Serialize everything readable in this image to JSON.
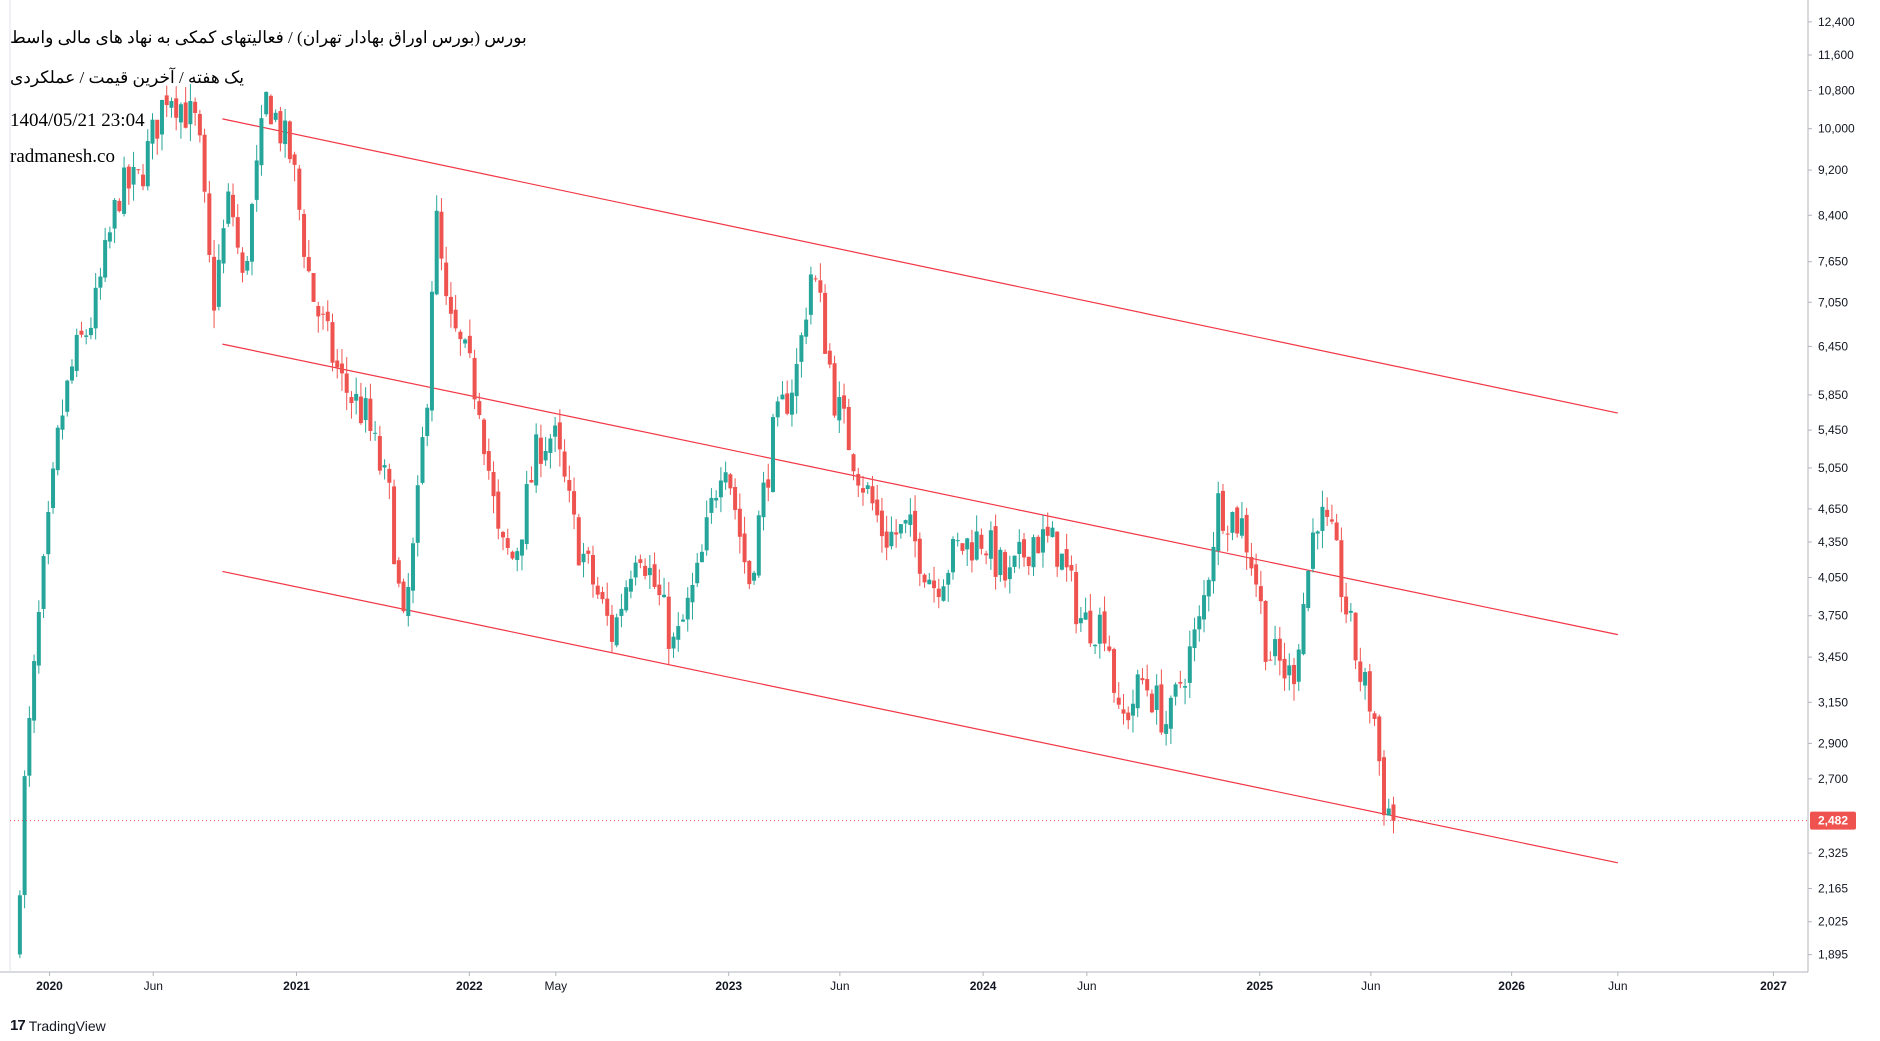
{
  "header": {
    "title": "بورس (بورس اوراق بهادار تهران) / فعالیتهای کمکی به نهاد های مالی واسط",
    "subtitle": "یک هفته / آخرین قیمت / عملکردی",
    "timestamp": "1404/05/21 23:04",
    "website": "radmanesh.co"
  },
  "brand": {
    "logo": "17",
    "name": "TradingView"
  },
  "chart_data": {
    "type": "candlestick",
    "interval": "1W",
    "y_scale": "log",
    "ylim": [
      1830,
      12700
    ],
    "xlim": [
      2019.84,
      2027.12
    ],
    "y_ticks": [
      {
        "v": 12400,
        "label": "12,400"
      },
      {
        "v": 11600,
        "label": "11,600"
      },
      {
        "v": 10800,
        "label": "10,800"
      },
      {
        "v": 10000,
        "label": "10,000"
      },
      {
        "v": 9200,
        "label": "9,200"
      },
      {
        "v": 8400,
        "label": "8,400"
      },
      {
        "v": 7650,
        "label": "7,650"
      },
      {
        "v": 7050,
        "label": "7,050"
      },
      {
        "v": 6450,
        "label": "6,450"
      },
      {
        "v": 5850,
        "label": "5,850"
      },
      {
        "v": 5450,
        "label": "5,450"
      },
      {
        "v": 5050,
        "label": "5,050"
      },
      {
        "v": 4650,
        "label": "4,650"
      },
      {
        "v": 4350,
        "label": "4,350"
      },
      {
        "v": 4050,
        "label": "4,050"
      },
      {
        "v": 3750,
        "label": "3,750"
      },
      {
        "v": 3450,
        "label": "3,450"
      },
      {
        "v": 3150,
        "label": "3,150"
      },
      {
        "v": 2900,
        "label": "2,900"
      },
      {
        "v": 2700,
        "label": "2,700"
      },
      {
        "v": 2325,
        "label": "2,325"
      },
      {
        "v": 2165,
        "label": "2,165"
      },
      {
        "v": 2025,
        "label": "2,025"
      },
      {
        "v": 1895,
        "label": "1,895"
      }
    ],
    "x_ticks": [
      {
        "t": 2020.0,
        "label": "2020",
        "bold": true
      },
      {
        "t": 2020.42,
        "label": "Jun",
        "bold": false
      },
      {
        "t": 2021.0,
        "label": "2021",
        "bold": true
      },
      {
        "t": 2021.7,
        "label": "2022",
        "bold": true
      },
      {
        "t": 2022.05,
        "label": "May",
        "bold": false
      },
      {
        "t": 2022.75,
        "label": "2023",
        "bold": true
      },
      {
        "t": 2023.2,
        "label": "Jun",
        "bold": false
      },
      {
        "t": 2023.78,
        "label": "2024",
        "bold": true
      },
      {
        "t": 2024.2,
        "label": "Jun",
        "bold": false
      },
      {
        "t": 2024.9,
        "label": "2025",
        "bold": true
      },
      {
        "t": 2025.35,
        "label": "Jun",
        "bold": false
      },
      {
        "t": 2025.92,
        "label": "2026",
        "bold": true
      },
      {
        "t": 2026.35,
        "label": "Jun",
        "bold": false
      },
      {
        "t": 2026.98,
        "label": "2027",
        "bold": true
      }
    ],
    "last_price": 2482,
    "last_price_label": "2,482",
    "up_color": "#26a69a",
    "down_color": "#ef5350",
    "trendline_color": "#f23645",
    "trendlines": [
      {
        "name": "channel-top",
        "x1": 2020.7,
        "y1": 10200,
        "x2": 2026.35,
        "y2": 5640
      },
      {
        "name": "channel-mid",
        "x1": 2020.7,
        "y1": 6480,
        "x2": 2026.35,
        "y2": 3610
      },
      {
        "name": "channel-bottom",
        "x1": 2020.7,
        "y1": 4100,
        "x2": 2026.35,
        "y2": 2280
      }
    ],
    "anchors": [
      {
        "t": 2019.88,
        "p": 1880
      },
      {
        "t": 2019.92,
        "p": 2700
      },
      {
        "t": 2019.98,
        "p": 3800
      },
      {
        "t": 2020.06,
        "p": 5500
      },
      {
        "t": 2020.12,
        "p": 6300
      },
      {
        "t": 2020.2,
        "p": 6900
      },
      {
        "t": 2020.3,
        "p": 8800
      },
      {
        "t": 2020.38,
        "p": 9000
      },
      {
        "t": 2020.5,
        "p": 10900
      },
      {
        "t": 2020.62,
        "p": 10000
      },
      {
        "t": 2020.68,
        "p": 7000
      },
      {
        "t": 2020.75,
        "p": 8800
      },
      {
        "t": 2020.8,
        "p": 7300
      },
      {
        "t": 2020.9,
        "p": 10700
      },
      {
        "t": 2021.0,
        "p": 9400
      },
      {
        "t": 2021.08,
        "p": 7200
      },
      {
        "t": 2021.2,
        "p": 6000
      },
      {
        "t": 2021.3,
        "p": 5600
      },
      {
        "t": 2021.4,
        "p": 4700
      },
      {
        "t": 2021.45,
        "p": 3600
      },
      {
        "t": 2021.5,
        "p": 4400
      },
      {
        "t": 2021.55,
        "p": 6000
      },
      {
        "t": 2021.58,
        "p": 8500
      },
      {
        "t": 2021.63,
        "p": 6800
      },
      {
        "t": 2021.7,
        "p": 6300
      },
      {
        "t": 2021.76,
        "p": 5800
      },
      {
        "t": 2021.84,
        "p": 4300
      },
      {
        "t": 2021.9,
        "p": 4200
      },
      {
        "t": 2022.0,
        "p": 5300
      },
      {
        "t": 2022.06,
        "p": 5400
      },
      {
        "t": 2022.15,
        "p": 4400
      },
      {
        "t": 2022.3,
        "p": 3600
      },
      {
        "t": 2022.4,
        "p": 4400
      },
      {
        "t": 2022.5,
        "p": 3800
      },
      {
        "t": 2022.55,
        "p": 3500
      },
      {
        "t": 2022.65,
        "p": 4100
      },
      {
        "t": 2022.75,
        "p": 5300
      },
      {
        "t": 2022.85,
        "p": 4000
      },
      {
        "t": 2022.95,
        "p": 5400
      },
      {
        "t": 2023.05,
        "p": 6200
      },
      {
        "t": 2023.1,
        "p": 7500
      },
      {
        "t": 2023.13,
        "p": 7200
      },
      {
        "t": 2023.2,
        "p": 5800
      },
      {
        "t": 2023.3,
        "p": 5000
      },
      {
        "t": 2023.4,
        "p": 4400
      },
      {
        "t": 2023.5,
        "p": 4450
      },
      {
        "t": 2023.6,
        "p": 4000
      },
      {
        "t": 2023.7,
        "p": 4300
      },
      {
        "t": 2023.8,
        "p": 4400
      },
      {
        "t": 2023.9,
        "p": 4000
      },
      {
        "t": 2024.0,
        "p": 4400
      },
      {
        "t": 2024.1,
        "p": 4300
      },
      {
        "t": 2024.2,
        "p": 3700
      },
      {
        "t": 2024.3,
        "p": 3700
      },
      {
        "t": 2024.35,
        "p": 3000
      },
      {
        "t": 2024.45,
        "p": 3300
      },
      {
        "t": 2024.55,
        "p": 3000
      },
      {
        "t": 2024.6,
        "p": 3300
      },
      {
        "t": 2024.68,
        "p": 3700
      },
      {
        "t": 2024.75,
        "p": 4700
      },
      {
        "t": 2024.85,
        "p": 4500
      },
      {
        "t": 2024.9,
        "p": 4100
      },
      {
        "t": 2024.95,
        "p": 3500
      },
      {
        "t": 2025.05,
        "p": 3300
      },
      {
        "t": 2025.1,
        "p": 3900
      },
      {
        "t": 2025.15,
        "p": 4650
      },
      {
        "t": 2025.22,
        "p": 4300
      },
      {
        "t": 2025.28,
        "p": 3700
      },
      {
        "t": 2025.33,
        "p": 3300
      },
      {
        "t": 2025.38,
        "p": 3100
      },
      {
        "t": 2025.42,
        "p": 2600
      },
      {
        "t": 2025.46,
        "p": 2482
      }
    ]
  }
}
